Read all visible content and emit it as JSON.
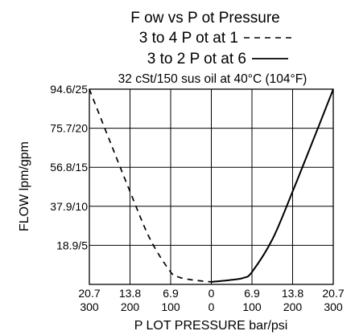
{
  "chart_data": {
    "type": "line",
    "title_lines": [
      "F ow vs  P  ot Pressure",
      "3 to 4  P  ot at 1",
      "3 to 2  P  ot at 6"
    ],
    "subtitle": "32 cSt/150 sus oil at 40°C (104°F)",
    "xlabel": "P LOT PRESSURE bar/psi",
    "ylabel": "FLOW lpm/gpm",
    "x_tick_labels": [
      {
        "bar": "20.7",
        "psi": "300"
      },
      {
        "bar": "13.8",
        "psi": "200"
      },
      {
        "bar": "6.9",
        "psi": "100"
      },
      {
        "bar": "0",
        "psi": "0"
      },
      {
        "bar": "6.9",
        "psi": "100"
      },
      {
        "bar": "13.8",
        "psi": "200"
      },
      {
        "bar": "20.7",
        "psi": "300"
      }
    ],
    "y_tick_labels": [
      "94.6/25",
      "75.7/20",
      "56.8/15",
      "37.9/10",
      "18.9/5"
    ],
    "xlim": [
      -20.7,
      20.7
    ],
    "ylim": [
      0,
      94.6
    ],
    "grid": true,
    "series": [
      {
        "name": "3 to 4  P  ot at 1",
        "style": "dashed",
        "x": [
          -20.7,
          -17.3,
          -13.8,
          -10.4,
          -6.9,
          -5.5,
          -3.5,
          -1.5,
          0
        ],
        "y": [
          94.6,
          70,
          45,
          22,
          6,
          3.5,
          2.3,
          1.6,
          1.2
        ]
      },
      {
        "name": "3 to 2  P  ot at 6",
        "style": "solid",
        "x": [
          0,
          1.5,
          3.5,
          5.5,
          6.9,
          10.4,
          13.8,
          17.3,
          20.7
        ],
        "y": [
          1.2,
          1.6,
          2.2,
          3.2,
          6,
          22,
          45,
          70,
          94.6
        ]
      }
    ]
  }
}
